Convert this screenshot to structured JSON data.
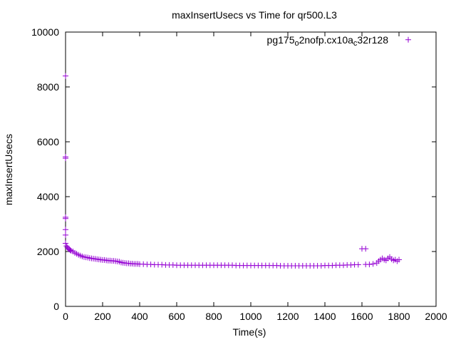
{
  "chart_data": {
    "type": "scatter",
    "title": "maxInsertUsecs vs Time for qr500.L3",
    "xlabel": "Time(s)",
    "ylabel": "maxInsertUsecs",
    "xlim": [
      0,
      2000
    ],
    "ylim": [
      0,
      10000
    ],
    "x_ticks": [
      "0",
      "200",
      "400",
      "600",
      "800",
      "1000",
      "1200",
      "1400",
      "1600",
      "1800",
      "2000"
    ],
    "y_ticks": [
      "0",
      "2000",
      "4000",
      "6000",
      "8000",
      "10000"
    ],
    "legend_position": "top-right",
    "marker": "+",
    "grid": false,
    "series": [
      {
        "name_parts": [
          {
            "text": "pg175",
            "sub": false
          },
          {
            "text": "o",
            "sub": true
          },
          {
            "text": "2nofp.cx10a",
            "sub": false
          },
          {
            "text": "c",
            "sub": true
          },
          {
            "text": "32r128",
            "sub": false
          }
        ],
        "color": "#9400d3",
        "points": [
          [
            0,
            8400
          ],
          [
            0,
            5450
          ],
          [
            0,
            5400
          ],
          [
            0,
            3250
          ],
          [
            0,
            3200
          ],
          [
            0,
            2800
          ],
          [
            0,
            2600
          ],
          [
            0,
            2300
          ],
          [
            5,
            2200
          ],
          [
            10,
            2150
          ],
          [
            15,
            2100
          ],
          [
            20,
            2080
          ],
          [
            25,
            2050
          ],
          [
            30,
            2030
          ],
          [
            40,
            2000
          ],
          [
            50,
            1950
          ],
          [
            60,
            1920
          ],
          [
            70,
            1880
          ],
          [
            80,
            1850
          ],
          [
            90,
            1820
          ],
          [
            100,
            1800
          ],
          [
            110,
            1790
          ],
          [
            120,
            1780
          ],
          [
            130,
            1760
          ],
          [
            140,
            1750
          ],
          [
            150,
            1740
          ],
          [
            160,
            1730
          ],
          [
            170,
            1720
          ],
          [
            180,
            1710
          ],
          [
            190,
            1700
          ],
          [
            200,
            1690
          ],
          [
            210,
            1690
          ],
          [
            220,
            1680
          ],
          [
            230,
            1670
          ],
          [
            240,
            1670
          ],
          [
            250,
            1660
          ],
          [
            260,
            1660
          ],
          [
            270,
            1650
          ],
          [
            280,
            1640
          ],
          [
            290,
            1630
          ],
          [
            300,
            1600
          ],
          [
            310,
            1590
          ],
          [
            320,
            1580
          ],
          [
            330,
            1570
          ],
          [
            340,
            1570
          ],
          [
            350,
            1560
          ],
          [
            360,
            1560
          ],
          [
            370,
            1550
          ],
          [
            380,
            1550
          ],
          [
            390,
            1550
          ],
          [
            400,
            1540
          ],
          [
            420,
            1540
          ],
          [
            440,
            1530
          ],
          [
            460,
            1530
          ],
          [
            480,
            1520
          ],
          [
            500,
            1520
          ],
          [
            520,
            1520
          ],
          [
            540,
            1510
          ],
          [
            560,
            1510
          ],
          [
            580,
            1510
          ],
          [
            600,
            1500
          ],
          [
            620,
            1500
          ],
          [
            640,
            1500
          ],
          [
            660,
            1500
          ],
          [
            680,
            1500
          ],
          [
            700,
            1500
          ],
          [
            720,
            1500
          ],
          [
            740,
            1500
          ],
          [
            760,
            1500
          ],
          [
            780,
            1500
          ],
          [
            800,
            1500
          ],
          [
            820,
            1500
          ],
          [
            840,
            1500
          ],
          [
            860,
            1500
          ],
          [
            880,
            1500
          ],
          [
            900,
            1500
          ],
          [
            920,
            1490
          ],
          [
            940,
            1490
          ],
          [
            960,
            1490
          ],
          [
            980,
            1490
          ],
          [
            1000,
            1490
          ],
          [
            1020,
            1490
          ],
          [
            1040,
            1490
          ],
          [
            1060,
            1490
          ],
          [
            1080,
            1490
          ],
          [
            1100,
            1490
          ],
          [
            1120,
            1490
          ],
          [
            1140,
            1490
          ],
          [
            1160,
            1480
          ],
          [
            1180,
            1480
          ],
          [
            1200,
            1480
          ],
          [
            1220,
            1480
          ],
          [
            1240,
            1480
          ],
          [
            1260,
            1480
          ],
          [
            1280,
            1480
          ],
          [
            1300,
            1480
          ],
          [
            1320,
            1480
          ],
          [
            1340,
            1480
          ],
          [
            1360,
            1480
          ],
          [
            1380,
            1480
          ],
          [
            1400,
            1490
          ],
          [
            1420,
            1490
          ],
          [
            1440,
            1490
          ],
          [
            1460,
            1500
          ],
          [
            1480,
            1500
          ],
          [
            1500,
            1500
          ],
          [
            1520,
            1510
          ],
          [
            1540,
            1510
          ],
          [
            1560,
            1520
          ],
          [
            1580,
            1520
          ],
          [
            1600,
            2100
          ],
          [
            1620,
            2100
          ],
          [
            1620,
            1530
          ],
          [
            1640,
            1530
          ],
          [
            1660,
            1550
          ],
          [
            1680,
            1580
          ],
          [
            1690,
            1650
          ],
          [
            1700,
            1700
          ],
          [
            1710,
            1750
          ],
          [
            1720,
            1700
          ],
          [
            1730,
            1680
          ],
          [
            1740,
            1750
          ],
          [
            1750,
            1800
          ],
          [
            1760,
            1720
          ],
          [
            1770,
            1680
          ],
          [
            1780,
            1700
          ],
          [
            1790,
            1650
          ],
          [
            1800,
            1700
          ]
        ]
      }
    ],
    "legend_marker_point": [
      1850,
      9720
    ]
  }
}
